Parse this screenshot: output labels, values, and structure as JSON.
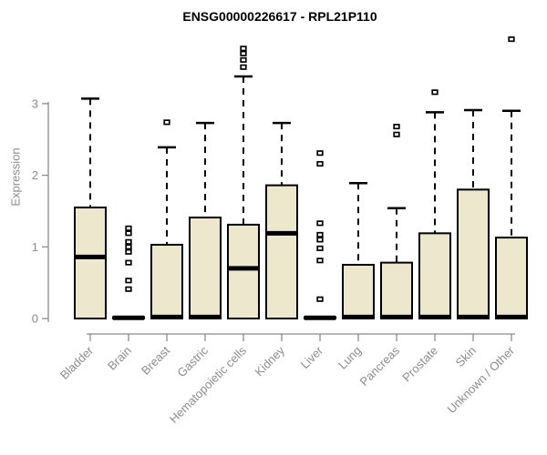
{
  "title": "ENSG00000226617 - RPL21P110",
  "chart_data": {
    "type": "boxplot",
    "title": "ENSG00000226617 - RPL21P110",
    "xlabel": "",
    "ylabel": "Expression",
    "ylim": [
      0,
      3.95
    ],
    "yticks": [
      "0",
      "1",
      "2",
      "3"
    ],
    "grid": false,
    "legend": "none",
    "colors": {
      "box_fill": "#EDE7CE",
      "box_stroke": "#000000",
      "median": "#000000",
      "whisker": "#000000",
      "axis": "#8C8C8C",
      "tick_text": "#8C8C8C",
      "title_text": "#000000"
    },
    "categories": [
      "Bladder",
      "Brain",
      "Breast",
      "Gastric",
      "Hematopoietic cells",
      "Kidney",
      "Liver",
      "Lung",
      "Pancreas",
      "Prostate",
      "Skin",
      "Unknown / Other"
    ],
    "boxes": [
      {
        "label": "Bladder",
        "low": 0,
        "q1": 0,
        "median": 0.86,
        "q3": 1.55,
        "high": 3.07,
        "outliers": []
      },
      {
        "label": "Brain",
        "low": 0,
        "q1": 0,
        "median": 0.01,
        "q3": 0.02,
        "high": 0.02,
        "outliers": [
          1.26,
          1.19,
          1.07,
          1.0,
          0.93,
          0.78,
          0.53,
          0.41
        ]
      },
      {
        "label": "Breast",
        "low": 0,
        "q1": 0,
        "median": 0.02,
        "q3": 1.03,
        "high": 2.39,
        "outliers": [
          2.74
        ]
      },
      {
        "label": "Gastric",
        "low": 0,
        "q1": 0,
        "median": 0.02,
        "q3": 1.41,
        "high": 2.73,
        "outliers": []
      },
      {
        "label": "Hematopoietic cells",
        "low": 0,
        "q1": 0,
        "median": 0.7,
        "q3": 1.31,
        "high": 3.38,
        "outliers": [
          3.77,
          3.7,
          3.61,
          3.51
        ]
      },
      {
        "label": "Kidney",
        "low": 0,
        "q1": 0,
        "median": 1.19,
        "q3": 1.86,
        "high": 2.73,
        "outliers": []
      },
      {
        "label": "Liver",
        "low": 0,
        "q1": 0,
        "median": 0.01,
        "q3": 0.02,
        "high": 0.02,
        "outliers": [
          2.31,
          2.16,
          1.33,
          1.17,
          1.1,
          0.98,
          0.81,
          0.27
        ]
      },
      {
        "label": "Lung",
        "low": 0,
        "q1": 0,
        "median": 0.02,
        "q3": 0.75,
        "high": 1.89,
        "outliers": []
      },
      {
        "label": "Pancreas",
        "low": 0,
        "q1": 0,
        "median": 0.02,
        "q3": 0.78,
        "high": 1.54,
        "outliers": [
          2.68,
          2.57
        ]
      },
      {
        "label": "Prostate",
        "low": 0,
        "q1": 0,
        "median": 0.02,
        "q3": 1.19,
        "high": 2.88,
        "outliers": [
          3.16
        ]
      },
      {
        "label": "Skin",
        "low": 0,
        "q1": 0,
        "median": 0.02,
        "q3": 1.8,
        "high": 2.91,
        "outliers": []
      },
      {
        "label": "Unknown / Other",
        "low": 0,
        "q1": 0,
        "median": 0.02,
        "q3": 1.13,
        "high": 2.9,
        "outliers": [
          3.9
        ]
      }
    ]
  }
}
